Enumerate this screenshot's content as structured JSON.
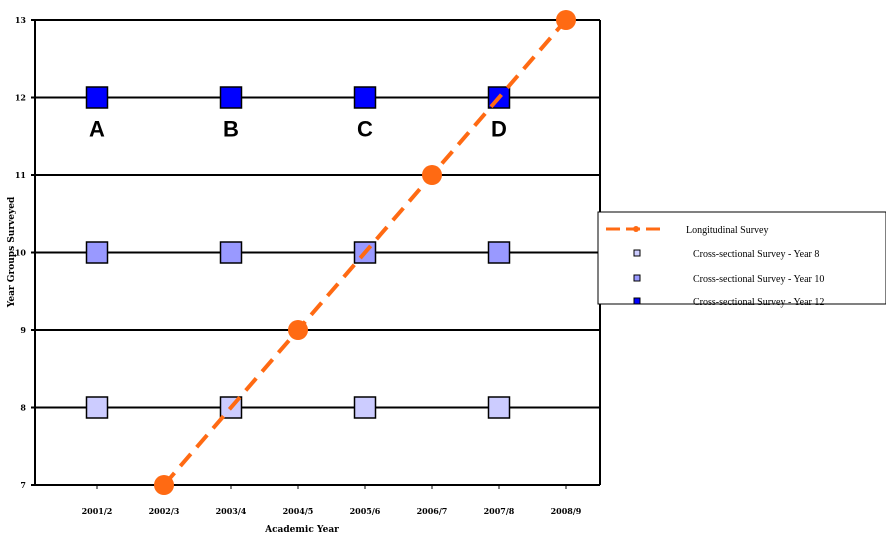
{
  "chart_data": {
    "type": "scatter",
    "xlabel": "Academic Year",
    "ylabel": "Year Groups Surveyed",
    "categories": [
      "2001/2",
      "2002/3",
      "2003/4",
      "2004/5",
      "2005/6",
      "2006/7",
      "2007/8",
      "2008/9"
    ],
    "ylim": [
      7,
      13
    ],
    "yticks": [
      7,
      8,
      9,
      10,
      11,
      12,
      13
    ],
    "grid": "horizontal",
    "legend_position": "right",
    "group_labels": [
      {
        "text": "A",
        "x": "2001/2",
        "y": 11.6
      },
      {
        "text": "B",
        "x": "2003/4",
        "y": 11.6
      },
      {
        "text": "C",
        "x": "2005/6",
        "y": 11.6
      },
      {
        "text": "D",
        "x": "2007/8",
        "y": 11.6
      }
    ],
    "series": [
      {
        "name": "Longitudinal Survey",
        "kind": "line",
        "color": "#FF6A13",
        "points": [
          [
            "2002/3",
            7
          ],
          [
            "2004/5",
            9
          ],
          [
            "2006/7",
            11
          ],
          [
            "2008/9",
            13
          ]
        ]
      },
      {
        "name": "Cross-sectional Survey - Year 8",
        "kind": "marker",
        "color": "#CCCCFF",
        "points": [
          [
            "2001/2",
            8
          ],
          [
            "2003/4",
            8
          ],
          [
            "2005/6",
            8
          ],
          [
            "2007/8",
            8
          ]
        ]
      },
      {
        "name": "Cross-sectional Survey - Year 10",
        "kind": "marker",
        "color": "#9999FF",
        "points": [
          [
            "2001/2",
            10
          ],
          [
            "2003/4",
            10
          ],
          [
            "2005/6",
            10
          ],
          [
            "2007/8",
            10
          ]
        ]
      },
      {
        "name": "Cross-sectional Survey - Year 12",
        "kind": "marker",
        "color": "#0000FF",
        "points": [
          [
            "2001/2",
            12
          ],
          [
            "2003/4",
            12
          ],
          [
            "2005/6",
            12
          ],
          [
            "2007/8",
            12
          ]
        ]
      }
    ]
  }
}
